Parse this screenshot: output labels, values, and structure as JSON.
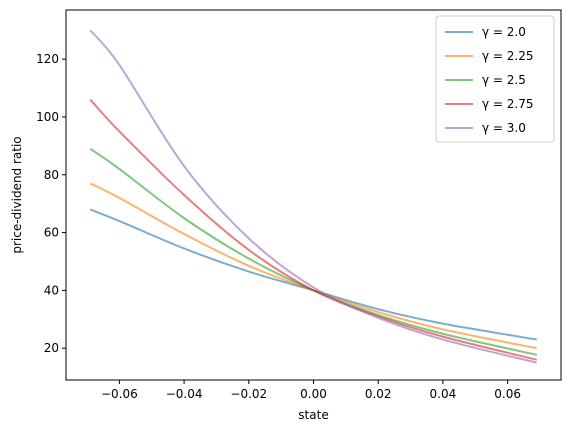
{
  "chart_data": {
    "type": "line",
    "title": "",
    "xlabel": "state",
    "ylabel": "price-dividend ratio",
    "xlim": [
      -0.0765,
      0.0765
    ],
    "ylim": [
      9,
      137
    ],
    "xticks": [
      -0.06,
      -0.04,
      -0.02,
      0.0,
      0.02,
      0.04,
      0.06
    ],
    "xtick_labels": [
      "−0.06",
      "−0.04",
      "−0.02",
      "0.00",
      "0.02",
      "0.04",
      "0.06"
    ],
    "yticks": [
      20,
      40,
      60,
      80,
      100,
      120
    ],
    "ytick_labels": [
      "20",
      "40",
      "60",
      "80",
      "100",
      "120"
    ],
    "grid": false,
    "legend_position": "top-right",
    "x": [
      -0.069,
      -0.06,
      -0.04,
      -0.02,
      0.0,
      0.02,
      0.04,
      0.069
    ],
    "series": [
      {
        "name": "γ = 2.0",
        "color": "#1f77b4",
        "values": [
          68,
          64,
          54.5,
          46.5,
          40,
          33.5,
          28.5,
          23
        ]
      },
      {
        "name": "γ = 2.25",
        "color": "#ff7f0e",
        "values": [
          77,
          72,
          59.5,
          48.5,
          40,
          32.5,
          26.5,
          20
        ]
      },
      {
        "name": "γ = 2.5",
        "color": "#2ca02c",
        "values": [
          89,
          82,
          65,
          51,
          40,
          31.5,
          25,
          17.7
        ]
      },
      {
        "name": "γ = 2.75",
        "color": "#d62728",
        "values": [
          106,
          95,
          73,
          54,
          40,
          31,
          24,
          16
        ]
      },
      {
        "name": "γ = 3.0",
        "color": "#9467bd",
        "values": [
          130,
          118,
          83,
          58,
          41,
          30.5,
          23,
          15
        ]
      }
    ]
  }
}
